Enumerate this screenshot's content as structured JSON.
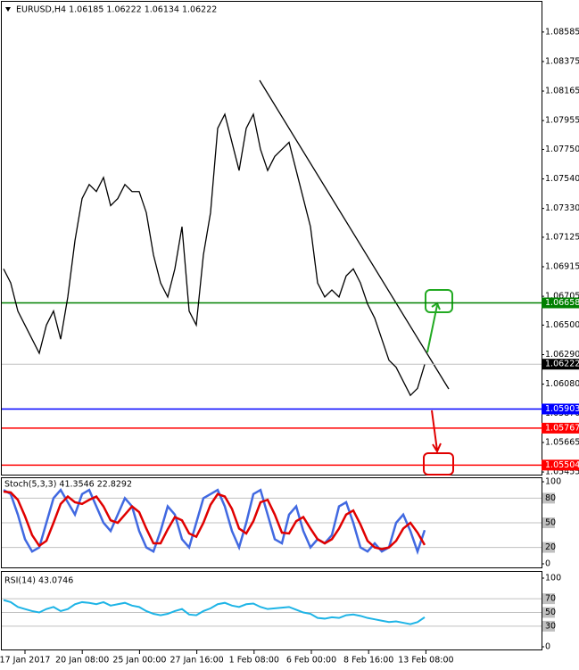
{
  "chart_data": {
    "type": "line",
    "title": "EURUSD,H4  1.06185 1.06222 1.06134 1.06222",
    "ylim": [
      1.0543,
      1.088
    ],
    "yticks": [
      1.08585,
      1.08375,
      1.08165,
      1.07955,
      {
        "value": 1.0775,
        "label": "1.07750"
      },
      {
        "value": 1.0754,
        "label": "1.07540"
      },
      {
        "value": 1.0733,
        "label": "1.07330"
      },
      1.07125,
      1.06915,
      1.06705,
      {
        "value": 1.065,
        "label": "1.06500"
      },
      {
        "value": 1.0629,
        "label": "1.06290"
      },
      {
        "value": 1.0608,
        "label": "1.06080"
      },
      {
        "value": 1.0587,
        "label": "1.05870"
      },
      1.05665,
      1.05455
    ],
    "series": [
      {
        "name": "EURUSD",
        "color": "#000000",
        "values": [
          1.069,
          1.068,
          1.066,
          1.065,
          1.064,
          1.063,
          1.065,
          1.066,
          1.064,
          1.067,
          1.071,
          1.074,
          1.075,
          1.0745,
          1.0755,
          1.0735,
          1.074,
          1.075,
          1.0745,
          1.0745,
          1.073,
          1.07,
          1.068,
          1.067,
          1.069,
          1.072,
          1.066,
          1.065,
          1.07,
          1.073,
          1.079,
          1.08,
          1.078,
          1.076,
          1.079,
          1.08,
          1.0775,
          1.076,
          1.077,
          1.0775,
          1.078,
          1.076,
          1.074,
          1.072,
          1.068,
          1.067,
          1.0675,
          1.067,
          1.0685,
          1.069,
          1.068,
          1.0665,
          1.0655,
          1.064,
          1.0625,
          1.062,
          1.061,
          1.06,
          1.0605,
          1.0622
        ]
      }
    ],
    "levels": [
      {
        "value": 1.06658,
        "label": "1.06658",
        "color": "#008000"
      },
      {
        "value": 1.05903,
        "label": "1.05903",
        "color": "#0000ff"
      },
      {
        "value": 1.05767,
        "label": "1.05767",
        "color": "#ff0000"
      },
      {
        "value": 1.05504,
        "label": "1.05504",
        "color": "#ff0000"
      }
    ],
    "last_price": {
      "value": 1.06222,
      "label": "1.06222"
    },
    "time_labels": [
      "17 Jan 2017",
      "20 Jan 08:00",
      "25 Jan 00:00",
      "27 Jan 16:00",
      "1 Feb 08:00",
      "6 Feb 00:00",
      "8 Feb 16:00",
      "13 Feb 08:00"
    ],
    "stochastic": {
      "title": "Stoch(5,3,3) 41.3546 22.8292",
      "ylim": [
        0,
        100
      ],
      "yticks": [
        0,
        20,
        50,
        80,
        100
      ],
      "series": [
        {
          "name": "%K",
          "color": "#4169e1",
          "values": [
            90,
            85,
            60,
            30,
            15,
            20,
            50,
            80,
            90,
            75,
            60,
            85,
            90,
            70,
            50,
            40,
            60,
            80,
            70,
            40,
            20,
            15,
            40,
            70,
            60,
            30,
            20,
            50,
            80,
            85,
            90,
            70,
            40,
            20,
            50,
            85,
            90,
            60,
            30,
            25,
            60,
            70,
            40,
            20,
            30,
            25,
            35,
            70,
            75,
            50,
            20,
            15,
            25,
            15,
            20,
            50,
            60,
            40,
            15,
            41
          ]
        },
        {
          "name": "%D",
          "color": "#e00000",
          "values": [
            88,
            87,
            78,
            58,
            35,
            22,
            28,
            50,
            73,
            82,
            75,
            73,
            78,
            82,
            70,
            53,
            50,
            60,
            70,
            63,
            43,
            25,
            25,
            42,
            57,
            53,
            37,
            33,
            50,
            72,
            85,
            82,
            67,
            43,
            37,
            52,
            75,
            78,
            60,
            38,
            37,
            52,
            57,
            43,
            30,
            25,
            30,
            43,
            60,
            65,
            48,
            28,
            20,
            18,
            20,
            28,
            43,
            50,
            38,
            23
          ]
        }
      ]
    },
    "rsi": {
      "title": "RSI(14) 43.0746",
      "ylim": [
        0,
        100
      ],
      "yticks": [
        0,
        30,
        50,
        70,
        100
      ],
      "color": "#1eb4e6",
      "values": [
        68,
        65,
        58,
        55,
        52,
        50,
        55,
        58,
        52,
        55,
        62,
        65,
        64,
        62,
        65,
        60,
        62,
        64,
        60,
        58,
        52,
        48,
        46,
        48,
        52,
        55,
        47,
        46,
        52,
        56,
        62,
        64,
        60,
        58,
        62,
        63,
        58,
        55,
        56,
        57,
        58,
        54,
        50,
        48,
        42,
        41,
        43,
        42,
        46,
        47,
        45,
        42,
        40,
        38,
        36,
        37,
        35,
        33,
        36,
        43
      ]
    }
  }
}
